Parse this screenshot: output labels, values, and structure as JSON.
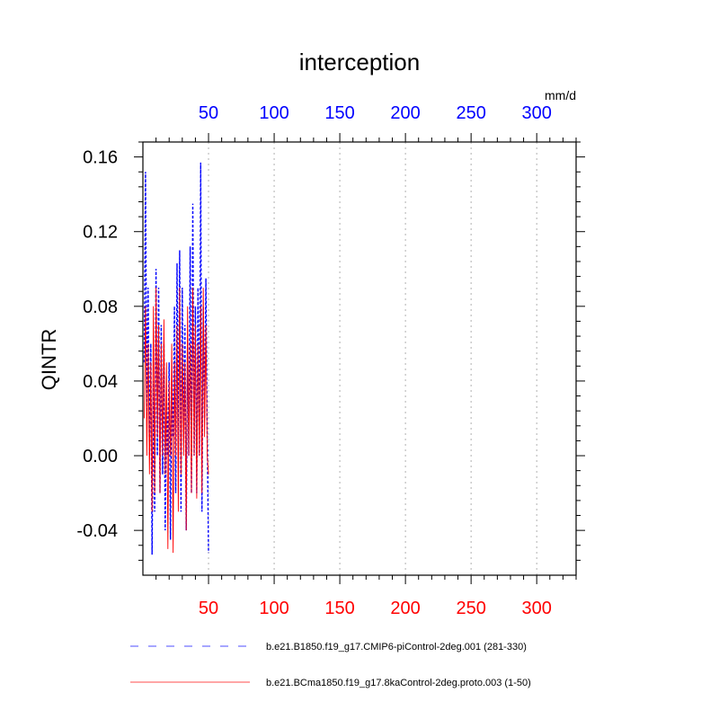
{
  "chart_data": {
    "type": "line",
    "title": "interception",
    "units": "mm/d",
    "ylabel": "QINTR",
    "xlim": [
      0,
      330
    ],
    "ylim": [
      -0.064,
      0.168
    ],
    "yticks": [
      -0.04,
      0.0,
      0.04,
      0.08,
      0.12,
      0.16
    ],
    "ytick_labels": [
      "-0.04",
      "0.00",
      "0.04",
      "0.08",
      "0.12",
      "0.16"
    ],
    "xticks": [
      50,
      100,
      150,
      200,
      250,
      300
    ],
    "xtick_labels": [
      "50",
      "100",
      "150",
      "200",
      "250",
      "300"
    ],
    "top_axis_color": "#0000ff",
    "bottom_axis_color": "#ff0000",
    "grid_x": true,
    "series": [
      {
        "name": "b.e21.B1850.f19_g17.CMIP6-piControl-2deg.001 (281-330)",
        "color": "#0000ff",
        "dash": "dashed",
        "x": [
          1,
          2,
          3,
          4,
          5,
          6,
          7,
          8,
          9,
          10,
          11,
          12,
          13,
          14,
          15,
          16,
          17,
          18,
          19,
          20,
          21,
          22,
          23,
          24,
          25,
          26,
          27,
          28,
          29,
          30,
          31,
          32,
          33,
          34,
          35,
          36,
          37,
          38,
          39,
          40,
          41,
          42,
          43,
          44,
          45,
          46,
          47,
          48,
          49,
          50
        ],
        "values": [
          0.05,
          0.152,
          0.02,
          0.09,
          0.0,
          0.06,
          -0.053,
          0.04,
          -0.03,
          0.1,
          0.0,
          0.09,
          -0.02,
          0.07,
          -0.01,
          0.06,
          -0.04,
          0.03,
          0.0,
          0.05,
          -0.045,
          0.04,
          0.01,
          0.08,
          -0.02,
          0.103,
          0.0,
          0.11,
          -0.03,
          0.09,
          0.01,
          0.07,
          -0.04,
          0.06,
          0.0,
          0.112,
          -0.02,
          0.135,
          0.0,
          0.08,
          -0.02,
          0.09,
          0.0,
          0.157,
          -0.03,
          0.08,
          0.02,
          0.095,
          0.01,
          -0.052
        ]
      },
      {
        "name": "b.e21.BCma1850.f19_g17.8kaControl-2deg.proto.003 (1-50)",
        "color": "#ff0000",
        "dash": "solid",
        "x": [
          1,
          2,
          3,
          4,
          5,
          6,
          7,
          8,
          9,
          10,
          11,
          12,
          13,
          14,
          15,
          16,
          17,
          18,
          19,
          20,
          21,
          22,
          23,
          24,
          25,
          26,
          27,
          28,
          29,
          30,
          31,
          32,
          33,
          34,
          35,
          36,
          37,
          38,
          39,
          40,
          41,
          42,
          43,
          44,
          45,
          46,
          47,
          48,
          49,
          50
        ],
        "values": [
          0.02,
          0.08,
          0.0,
          0.06,
          -0.01,
          0.05,
          -0.03,
          0.08,
          -0.02,
          0.09,
          0.01,
          0.07,
          -0.02,
          0.06,
          0.0,
          0.073,
          -0.01,
          0.05,
          -0.05,
          0.04,
          0.0,
          0.06,
          -0.052,
          0.05,
          0.0,
          0.07,
          -0.03,
          0.09,
          -0.01,
          0.06,
          0.0,
          0.05,
          -0.04,
          0.08,
          0.0,
          0.06,
          -0.02,
          0.09,
          0.0,
          0.07,
          -0.023,
          0.06,
          0.0,
          0.08,
          -0.02,
          0.09,
          0.01,
          0.07,
          0.0,
          -0.01
        ]
      }
    ]
  }
}
